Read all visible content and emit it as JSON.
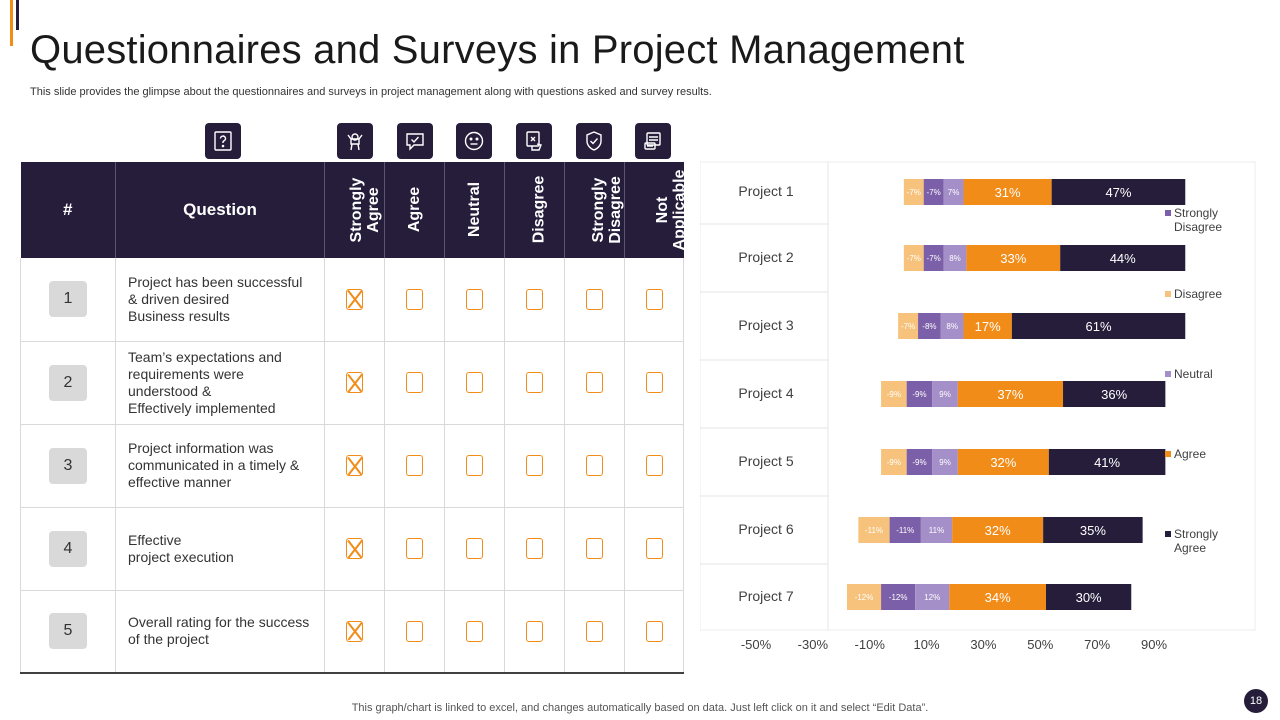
{
  "title": "Questionnaires and Surveys in Project Management",
  "subtitle": "This slide provides the glimpse about the questionnaires and surveys in project management along with questions asked and survey results.",
  "colors": {
    "navy": "#261d3b",
    "orange": "#f28c18",
    "purple": "#7b5fa8",
    "lavender": "#a58fc8",
    "peach": "#f6c27c",
    "check": "#f28c18"
  },
  "icons": [
    "question-icon",
    "strongly-agree-icon",
    "agree-icon",
    "neutral-icon",
    "disagree-icon",
    "strongly-disagree-icon",
    "not-applicable-icon"
  ],
  "table": {
    "headers": {
      "number": "#",
      "question": "Question",
      "responses": [
        "Strongly Agree",
        "Agree",
        "Neutral",
        "Disagree",
        "Strongly Disagree",
        "Not Applicable"
      ]
    },
    "rows": [
      {
        "number": "1",
        "question_lines": [
          "Project has been successful",
          "& driven desired",
          "Business results"
        ],
        "checked": [
          true,
          false,
          false,
          false,
          false,
          false
        ]
      },
      {
        "number": "2",
        "question_lines": [
          "Team’s expectations and",
          "requirements were",
          "understood &",
          "Effectively implemented"
        ],
        "checked": [
          true,
          false,
          false,
          false,
          false,
          false
        ]
      },
      {
        "number": "3",
        "question_lines": [
          "Project information was",
          "communicated in a timely &",
          "effective manner"
        ],
        "checked": [
          true,
          false,
          false,
          false,
          false,
          false
        ]
      },
      {
        "number": "4",
        "question_lines": [
          "Effective",
          "project execution"
        ],
        "checked": [
          true,
          false,
          false,
          false,
          false,
          false
        ]
      },
      {
        "number": "5",
        "question_lines": [
          "Overall rating for the success",
          "of the project"
        ],
        "checked": [
          true,
          false,
          false,
          false,
          false,
          false
        ]
      }
    ]
  },
  "chart_data": {
    "type": "bar",
    "orientation": "horizontal",
    "stacked": "diverging",
    "categories": [
      "Project 1",
      "Project 2",
      "Project 3",
      "Project 4",
      "Project 5",
      "Project 6",
      "Project 7"
    ],
    "series": [
      {
        "name": "Strongly Disagree",
        "values": [
          -7,
          -7,
          -8,
          -9,
          -9,
          -11,
          -12
        ],
        "labels": [
          "-7%",
          "-7%",
          "-8%",
          "-9%",
          "-9%",
          "-11%",
          "-12%"
        ]
      },
      {
        "name": "Disagree",
        "values": [
          -7,
          -7,
          -7,
          -9,
          -9,
          -11,
          -12
        ],
        "labels": [
          "-7%",
          "-7%",
          "-7%",
          "-9%",
          "-9%",
          "-11%",
          "-12%"
        ]
      },
      {
        "name": "Neutral",
        "values": [
          7,
          8,
          8,
          9,
          9,
          11,
          12
        ],
        "labels": [
          "7%",
          "8%",
          "8%",
          "9%",
          "9%",
          "11%",
          "12%"
        ]
      },
      {
        "name": "Agree",
        "values": [
          31,
          33,
          17,
          37,
          32,
          32,
          34
        ],
        "labels": [
          "31%",
          "33%",
          "17%",
          "37%",
          "32%",
          "32%",
          "34%"
        ]
      },
      {
        "name": "Strongly Agree",
        "values": [
          47,
          44,
          61,
          36,
          41,
          35,
          30
        ],
        "labels": [
          "47%",
          "44%",
          "61%",
          "36%",
          "41%",
          "35%",
          "30%"
        ]
      }
    ],
    "stack_order": [
      "Disagree",
      "Strongly Disagree",
      "Neutral",
      "Agree",
      "Strongly Agree"
    ],
    "legend": {
      "placement": "right",
      "order": [
        "Strongly Disagree",
        "Disagree",
        "Neutral",
        "Agree",
        "Strongly Agree"
      ]
    },
    "xticks": [
      "-50%",
      "-30%",
      "-10%",
      "10%",
      "30%",
      "50%",
      "70%",
      "90%"
    ],
    "xlim": [
      -50,
      90
    ],
    "xlabel": "",
    "ylabel": "",
    "grid": false
  },
  "footnote": "This graph/chart is linked to excel,  and changes automatically based on data. Just left click on it and select “Edit Data”.",
  "page_number": "18"
}
